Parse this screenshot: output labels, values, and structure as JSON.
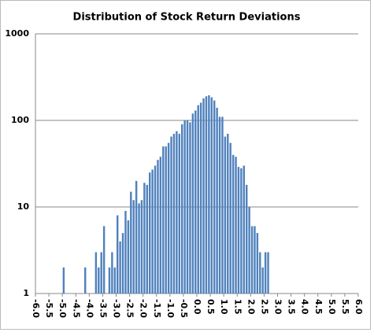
{
  "chart_data": {
    "type": "histogram",
    "title": "Distribution of Stock Return Deviations",
    "bins": [
      -5.0,
      -4.9,
      -4.8,
      -4.7,
      -4.6,
      -4.5,
      -4.4,
      -4.3,
      -4.2,
      -4.1,
      -4.0,
      -3.9,
      -3.8,
      -3.7,
      -3.6,
      -3.5,
      -3.4,
      -3.3,
      -3.2,
      -3.1,
      -3.0,
      -2.9,
      -2.8,
      -2.7,
      -2.6,
      -2.5,
      -2.4,
      -2.3,
      -2.2,
      -2.1,
      -2.0,
      -1.9,
      -1.8,
      -1.7,
      -1.6,
      -1.5,
      -1.4,
      -1.3,
      -1.2,
      -1.1,
      -1.0,
      -0.9,
      -0.8,
      -0.7,
      -0.6,
      -0.5,
      -0.4,
      -0.3,
      -0.2,
      -0.1,
      0.0,
      0.1,
      0.2,
      0.3,
      0.4,
      0.5,
      0.6,
      0.7,
      0.8,
      0.9,
      1.0,
      1.1,
      1.2,
      1.3,
      1.4,
      1.5,
      1.6,
      1.7,
      1.8,
      1.9,
      2.0,
      2.1,
      2.2,
      2.3,
      2.4,
      2.5,
      2.6,
      2.7
    ],
    "values": [
      2,
      0,
      0,
      0,
      0,
      0,
      0,
      0,
      2,
      0,
      0,
      0,
      3,
      2,
      3,
      6,
      0,
      2,
      3,
      2,
      8,
      4,
      5,
      9,
      7,
      15,
      12,
      20,
      11,
      12,
      19,
      18,
      25,
      27,
      30,
      35,
      38,
      50,
      50,
      55,
      65,
      70,
      75,
      70,
      90,
      100,
      100,
      95,
      120,
      130,
      150,
      160,
      180,
      190,
      195,
      185,
      170,
      140,
      110,
      110,
      65,
      70,
      55,
      40,
      38,
      29,
      28,
      30,
      18,
      10,
      6,
      6,
      5,
      3,
      2,
      3,
      3
    ],
    "color": "#4f81bd",
    "xlim": [
      -6,
      6
    ],
    "xticks": [
      {
        "value": -6,
        "label": "-6.0"
      },
      -5.5,
      {
        "value": -5,
        "label": "-5.0"
      },
      -4.5,
      {
        "value": -4,
        "label": "-4.0"
      },
      -3.5,
      {
        "value": -3,
        "label": "-3.0"
      },
      -2.5,
      {
        "value": -2,
        "label": "-2.0"
      },
      -1.5,
      {
        "value": -1,
        "label": "-1.0"
      },
      -0.5,
      {
        "value": 0,
        "label": "0.0"
      },
      0.5,
      {
        "value": 1,
        "label": "1.0"
      },
      1.5,
      {
        "value": 2,
        "label": "2.0"
      },
      2.5,
      {
        "value": 3,
        "label": "3.0"
      },
      3.5,
      {
        "value": 4,
        "label": "4.0"
      },
      4.5,
      {
        "value": 5,
        "label": "5.0"
      },
      5.5,
      {
        "value": 6,
        "label": "6.0"
      }
    ],
    "ylim": [
      1,
      1000
    ],
    "yticks": [
      1,
      10,
      100,
      1000
    ],
    "log_y": true,
    "grid": true
  }
}
